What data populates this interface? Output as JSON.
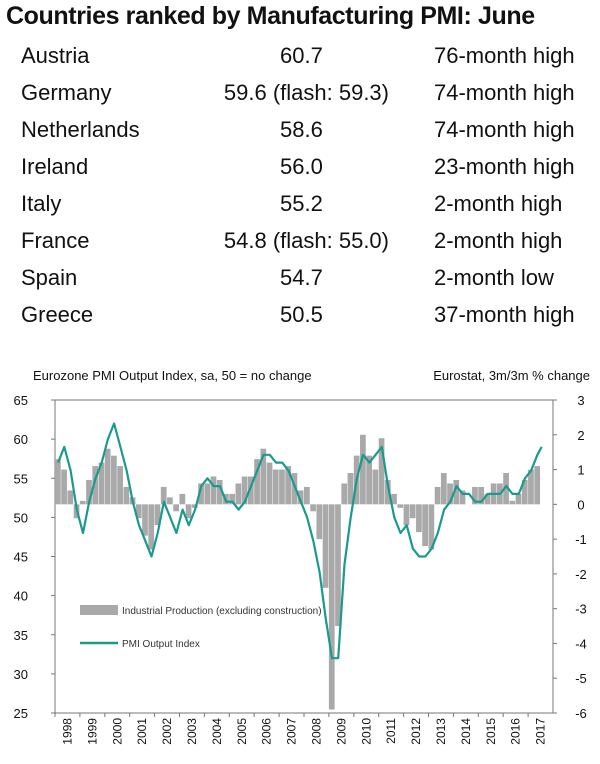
{
  "title": "Countries ranked by Manufacturing PMI: June",
  "table": {
    "rows": [
      {
        "country": "Austria",
        "value": "60.7",
        "note": "76-month high"
      },
      {
        "country": "Germany",
        "value": "59.6 (flash: 59.3)",
        "note": "74-month high"
      },
      {
        "country": "Netherlands",
        "value": "58.6",
        "note": "74-month high"
      },
      {
        "country": "Ireland",
        "value": "56.0",
        "note": "23-month high"
      },
      {
        "country": "Italy",
        "value": "55.2",
        "note": "2-month high"
      },
      {
        "country": "France",
        "value": "54.8 (flash: 55.0)",
        "note": "2-month high"
      },
      {
        "country": "Spain",
        "value": "54.7",
        "note": "2-month low"
      },
      {
        "country": "Greece",
        "value": "50.5",
        "note": "37-month high"
      }
    ]
  },
  "chart_data": {
    "type": "bar",
    "left_axis_title": "Eurozone PMI Output Index, sa, 50 = no change",
    "right_axis_title": "Eurostat, 3m/3m % change",
    "left_axis": {
      "min": 25,
      "max": 65,
      "ticks": [
        65,
        60,
        55,
        50,
        45,
        40,
        35,
        30,
        25
      ]
    },
    "right_axis": {
      "min": -6,
      "max": 3,
      "ticks": [
        3,
        2,
        1,
        0,
        -1,
        -2,
        -3,
        -4,
        -5,
        -6
      ]
    },
    "x_axis": {
      "ticks": [
        "1998",
        "1999",
        "2000",
        "2001",
        "2002",
        "2003",
        "2004",
        "2005",
        "2006",
        "2007",
        "2008",
        "2009",
        "2010",
        "2011",
        "2012",
        "2013",
        "2014",
        "2015",
        "2016",
        "2017"
      ]
    },
    "grid": false,
    "legend_position": "bottom-left",
    "colors": {
      "bars": "#a9a9a9",
      "line": "#1a9a8e"
    },
    "series": [
      {
        "name": "Industrial Production (excluding construction)",
        "type": "bar",
        "axis": "right",
        "x": [
          1998.0,
          1998.25,
          1998.5,
          1998.75,
          1999.0,
          1999.25,
          1999.5,
          1999.75,
          2000.0,
          2000.25,
          2000.5,
          2000.75,
          2001.0,
          2001.25,
          2001.5,
          2001.75,
          2002.0,
          2002.25,
          2002.5,
          2002.75,
          2003.0,
          2003.25,
          2003.5,
          2003.75,
          2004.0,
          2004.25,
          2004.5,
          2004.75,
          2005.0,
          2005.25,
          2005.5,
          2005.75,
          2006.0,
          2006.25,
          2006.5,
          2006.75,
          2007.0,
          2007.25,
          2007.5,
          2007.75,
          2008.0,
          2008.25,
          2008.5,
          2008.75,
          2009.0,
          2009.25,
          2009.5,
          2009.75,
          2010.0,
          2010.25,
          2010.5,
          2010.75,
          2011.0,
          2011.25,
          2011.5,
          2011.75,
          2012.0,
          2012.25,
          2012.5,
          2012.75,
          2013.0,
          2013.25,
          2013.5,
          2013.75,
          2014.0,
          2014.25,
          2014.5,
          2014.75,
          2015.0,
          2015.25,
          2015.5,
          2015.75,
          2016.0,
          2016.25,
          2016.5,
          2016.75,
          2017.0,
          2017.25
        ],
        "values": [
          1.3,
          1.0,
          0.4,
          -0.4,
          0.1,
          0.7,
          1.1,
          1.2,
          1.6,
          1.4,
          1.1,
          0.5,
          0.2,
          -0.4,
          -0.9,
          -1.3,
          -0.6,
          0.5,
          0.2,
          -0.2,
          0.3,
          -0.4,
          -0.1,
          0.6,
          0.6,
          0.8,
          0.7,
          0.3,
          0.3,
          0.6,
          0.8,
          0.8,
          1.3,
          1.6,
          1.2,
          1.0,
          1.0,
          1.1,
          0.9,
          0.4,
          0.5,
          -0.2,
          -1.0,
          -2.4,
          -5.9,
          -3.5,
          0.6,
          0.9,
          1.4,
          2.0,
          1.4,
          1.0,
          1.9,
          0.7,
          0.3,
          -0.1,
          -0.6,
          -0.4,
          -0.8,
          -1.2,
          -1.3,
          0.5,
          0.9,
          0.6,
          0.7,
          0.4,
          0.0,
          0.5,
          0.5,
          0.3,
          0.6,
          0.6,
          0.9,
          0.1,
          0.3,
          0.7,
          1.0,
          1.1
        ]
      },
      {
        "name": "PMI Output Index",
        "type": "line",
        "axis": "left",
        "x": [
          1998.0,
          1998.25,
          1998.5,
          1998.75,
          1999.0,
          1999.25,
          1999.5,
          1999.75,
          2000.0,
          2000.25,
          2000.5,
          2000.75,
          2001.0,
          2001.25,
          2001.5,
          2001.75,
          2002.0,
          2002.25,
          2002.5,
          2002.75,
          2003.0,
          2003.25,
          2003.5,
          2003.75,
          2004.0,
          2004.25,
          2004.5,
          2004.75,
          2005.0,
          2005.25,
          2005.5,
          2005.75,
          2006.0,
          2006.25,
          2006.5,
          2006.75,
          2007.0,
          2007.25,
          2007.5,
          2007.75,
          2008.0,
          2008.25,
          2008.5,
          2008.75,
          2009.0,
          2009.25,
          2009.5,
          2009.75,
          2010.0,
          2010.25,
          2010.5,
          2010.75,
          2011.0,
          2011.25,
          2011.5,
          2011.75,
          2012.0,
          2012.25,
          2012.5,
          2012.75,
          2013.0,
          2013.25,
          2013.5,
          2013.75,
          2014.0,
          2014.25,
          2014.5,
          2014.75,
          2015.0,
          2015.25,
          2015.5,
          2015.75,
          2016.0,
          2016.25,
          2016.5,
          2016.75,
          2017.0,
          2017.25,
          2017.42
        ],
        "values": [
          57,
          59,
          56,
          51,
          48,
          52,
          55,
          57,
          60,
          62,
          59,
          56,
          52,
          49,
          47,
          45,
          48,
          52,
          50,
          48,
          51,
          49,
          51,
          54,
          55,
          54,
          54,
          52,
          52,
          51,
          52,
          54,
          56,
          58,
          58,
          57,
          57,
          56,
          54,
          52,
          50,
          47,
          43,
          37,
          32,
          32,
          44,
          50,
          55,
          58,
          57,
          58,
          59,
          54,
          50,
          48,
          49,
          46,
          45,
          45,
          46,
          48,
          51,
          52,
          54,
          53,
          53,
          52,
          52,
          53,
          53,
          53,
          54,
          53,
          53,
          55,
          56,
          58,
          59
        ]
      }
    ]
  }
}
